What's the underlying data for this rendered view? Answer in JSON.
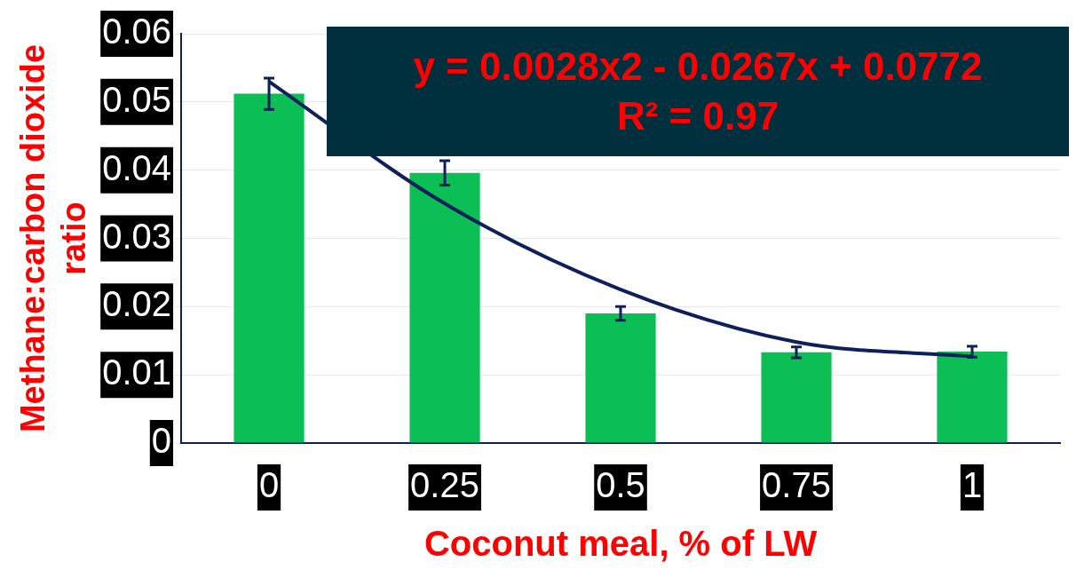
{
  "chart_data": {
    "type": "bar",
    "xlabel": "Coconut meal, % of LW",
    "ylabel": "Methane:carbon dioxide ratio",
    "categories": [
      "0",
      "0.25",
      "0.5",
      "0.75",
      "1"
    ],
    "series": [
      {
        "color": "#0cbf55",
        "values": [
          0.0512,
          0.0396,
          0.019,
          0.0133,
          0.0134
        ],
        "errors": [
          0.0023,
          0.0018,
          0.001,
          0.0008,
          0.0008
        ]
      },
      {
        "type": "line",
        "color": "#0d1f5c",
        "values": [
          0.053,
          0.0351,
          0.0225,
          0.0148,
          0.0127
        ]
      }
    ],
    "annotations": [
      "y = 0.0028x2 - 0.0267x + 0.0772",
      "R² = 0.97"
    ],
    "ylim": [
      0,
      0.06
    ],
    "yticks": [
      0,
      0.01,
      0.02,
      0.03,
      0.04,
      0.05,
      0.06
    ],
    "grid": "y",
    "legend": false,
    "marker": "none"
  }
}
